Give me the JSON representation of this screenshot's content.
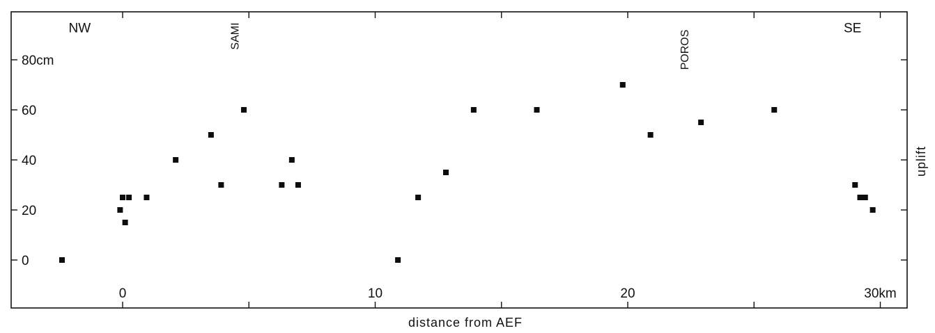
{
  "chart_data": {
    "type": "scatter",
    "title": "",
    "xlabel": "distance from AEF",
    "ylabel": "uplift",
    "xlim": [
      -4.5,
      31
    ],
    "ylim": [
      -14,
      98
    ],
    "x_ticks": [
      {
        "value": 0,
        "label": "0"
      },
      {
        "value": 10,
        "label": "10"
      },
      {
        "value": 20,
        "label": "20"
      },
      {
        "value": 30,
        "label": "30km"
      }
    ],
    "x_minor_ticks": [
      5,
      15,
      25
    ],
    "y_ticks": [
      {
        "value": 0,
        "label": "0"
      },
      {
        "value": 20,
        "label": "20"
      },
      {
        "value": 40,
        "label": "40"
      },
      {
        "value": 60,
        "label": "60"
      },
      {
        "value": 80,
        "label": "80cm"
      }
    ],
    "annotations": [
      {
        "text": "NW",
        "x": -1.7,
        "y": 91,
        "rotate": false
      },
      {
        "text": "SE",
        "x": 28.9,
        "y": 91,
        "rotate": false
      },
      {
        "text": "SAMI",
        "x": 4.6,
        "y": 84,
        "rotate": true
      },
      {
        "text": "POROS",
        "x": 22.4,
        "y": 76,
        "rotate": true
      }
    ],
    "points": [
      {
        "x": -2.4,
        "y": 0
      },
      {
        "x": -0.1,
        "y": 20
      },
      {
        "x": 0.0,
        "y": 25
      },
      {
        "x": 0.1,
        "y": 15
      },
      {
        "x": 0.25,
        "y": 25
      },
      {
        "x": 0.95,
        "y": 25
      },
      {
        "x": 2.1,
        "y": 40
      },
      {
        "x": 3.5,
        "y": 50
      },
      {
        "x": 3.9,
        "y": 30
      },
      {
        "x": 4.8,
        "y": 60
      },
      {
        "x": 6.3,
        "y": 30
      },
      {
        "x": 6.7,
        "y": 40
      },
      {
        "x": 6.95,
        "y": 30
      },
      {
        "x": 10.9,
        "y": 0
      },
      {
        "x": 11.7,
        "y": 25
      },
      {
        "x": 12.8,
        "y": 35
      },
      {
        "x": 13.9,
        "y": 60
      },
      {
        "x": 16.4,
        "y": 60
      },
      {
        "x": 19.8,
        "y": 70
      },
      {
        "x": 20.9,
        "y": 50
      },
      {
        "x": 22.9,
        "y": 55
      },
      {
        "x": 25.8,
        "y": 60
      },
      {
        "x": 29.0,
        "y": 30
      },
      {
        "x": 29.2,
        "y": 25
      },
      {
        "x": 29.4,
        "y": 25
      },
      {
        "x": 29.7,
        "y": 20
      }
    ]
  }
}
